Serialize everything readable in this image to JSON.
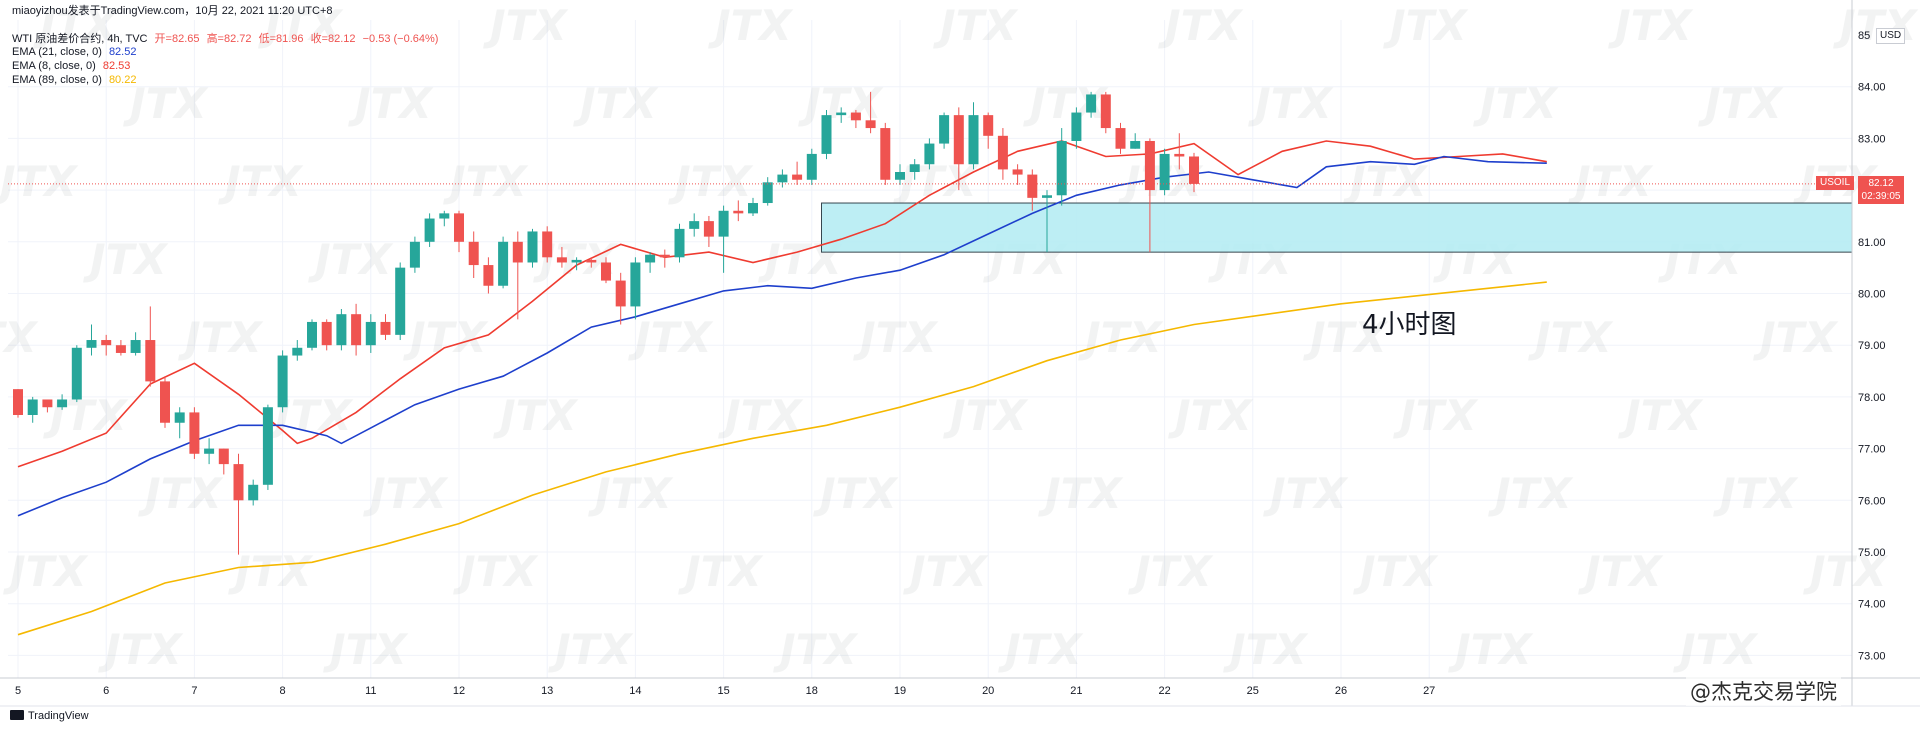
{
  "header": {
    "publisher_line": "miaoyizhou发表于TradingView.com，10月 22, 2021 11:20 UTC+8",
    "symbol_line": {
      "name": "WTI 原油差价合约, 4h, TVC",
      "open": "开=82.65",
      "high": "高=82.72",
      "low": "低=81.96",
      "close": "收=82.12",
      "change": "−0.53 (−0.64%)"
    },
    "indicators": [
      {
        "label": "EMA (21, close, 0)",
        "value": "82.52",
        "color": "#1e3fcc"
      },
      {
        "label": "EMA (8, close, 0)",
        "value": "82.53",
        "color": "#ef3b30"
      },
      {
        "label": "EMA (89, close, 0)",
        "value": "80.22",
        "color": "#f5b800"
      }
    ]
  },
  "price_badge": {
    "symbol": "USOIL",
    "price": "82.12",
    "countdown": "02:39:05"
  },
  "currency": "USD",
  "annotation": "4小时图",
  "footer": {
    "brand": "TradingView",
    "watermark": "@杰克交易学院"
  },
  "watermark_logo": "JTX",
  "colors": {
    "up": "#26a69a",
    "down": "#ef5350",
    "zone_fill": "#b2ebf2",
    "zone_stroke": "#37474f"
  },
  "chart_data": {
    "type": "candlestick",
    "ylim": [
      72.5,
      85.0
    ],
    "y_ticks": [
      "73.00",
      "74.00",
      "75.00",
      "76.00",
      "77.00",
      "78.00",
      "79.00",
      "80.00",
      "81.00",
      "82.00",
      "83.00",
      "84.00"
    ],
    "y_top_tick": "85",
    "x_ticks": [
      {
        "i": 0,
        "label": "5"
      },
      {
        "i": 6,
        "label": "6"
      },
      {
        "i": 12,
        "label": "7"
      },
      {
        "i": 18,
        "label": "8"
      },
      {
        "i": 24,
        "label": "11"
      },
      {
        "i": 30,
        "label": "12"
      },
      {
        "i": 36,
        "label": "13"
      },
      {
        "i": 42,
        "label": "14"
      },
      {
        "i": 48,
        "label": "15"
      },
      {
        "i": 54,
        "label": "18"
      },
      {
        "i": 60,
        "label": "19"
      },
      {
        "i": 66,
        "label": "20"
      },
      {
        "i": 72,
        "label": "21"
      },
      {
        "i": 78,
        "label": "22"
      },
      {
        "i": 84,
        "label": "25"
      },
      {
        "i": 90,
        "label": "26"
      },
      {
        "i": 96,
        "label": "27"
      }
    ],
    "candles": [
      [
        78.15,
        77.65,
        78.15,
        77.6
      ],
      [
        77.65,
        77.95,
        78.0,
        77.5
      ],
      [
        77.95,
        77.8,
        77.95,
        77.7
      ],
      [
        77.8,
        77.95,
        78.05,
        77.75
      ],
      [
        77.95,
        78.95,
        79.0,
        77.9
      ],
      [
        78.95,
        79.1,
        79.4,
        78.8
      ],
      [
        79.1,
        79.0,
        79.2,
        78.8
      ],
      [
        79.0,
        78.85,
        79.1,
        78.8
      ],
      [
        78.85,
        79.1,
        79.25,
        78.8
      ],
      [
        79.1,
        78.3,
        79.75,
        78.2
      ],
      [
        78.3,
        77.5,
        78.4,
        77.4
      ],
      [
        77.5,
        77.7,
        77.8,
        77.2
      ],
      [
        77.7,
        76.9,
        77.8,
        76.8
      ],
      [
        76.9,
        77.0,
        77.2,
        76.7
      ],
      [
        77.0,
        76.7,
        77.0,
        76.5
      ],
      [
        76.7,
        76.0,
        76.9,
        74.95
      ],
      [
        76.0,
        76.3,
        76.4,
        75.9
      ],
      [
        76.3,
        77.8,
        77.85,
        76.2
      ],
      [
        77.8,
        78.8,
        78.9,
        77.7
      ],
      [
        78.8,
        78.95,
        79.1,
        78.7
      ],
      [
        78.95,
        79.45,
        79.5,
        78.9
      ],
      [
        79.45,
        79.0,
        79.5,
        78.9
      ],
      [
        79.0,
        79.6,
        79.7,
        78.9
      ],
      [
        79.6,
        79.0,
        79.8,
        78.8
      ],
      [
        79.0,
        79.45,
        79.6,
        78.85
      ],
      [
        79.45,
        79.2,
        79.6,
        79.1
      ],
      [
        79.2,
        80.5,
        80.6,
        79.1
      ],
      [
        80.5,
        81.0,
        81.1,
        80.4
      ],
      [
        81.0,
        81.45,
        81.55,
        80.9
      ],
      [
        81.45,
        81.55,
        81.6,
        81.3
      ],
      [
        81.55,
        81.0,
        81.6,
        80.8
      ],
      [
        81.0,
        80.55,
        81.2,
        80.3
      ],
      [
        80.55,
        80.15,
        80.7,
        80.0
      ],
      [
        80.15,
        81.0,
        81.1,
        80.1
      ],
      [
        81.0,
        80.6,
        81.2,
        79.5
      ],
      [
        80.6,
        81.2,
        81.25,
        80.5
      ],
      [
        81.2,
        80.7,
        81.3,
        80.6
      ],
      [
        80.7,
        80.6,
        80.9,
        80.5
      ],
      [
        80.6,
        80.65,
        80.7,
        80.45
      ],
      [
        80.65,
        80.6,
        80.7,
        80.5
      ],
      [
        80.6,
        80.25,
        80.7,
        80.2
      ],
      [
        80.25,
        79.75,
        80.4,
        79.4
      ],
      [
        79.75,
        80.6,
        80.7,
        79.5
      ],
      [
        80.6,
        80.75,
        80.8,
        80.4
      ],
      [
        80.75,
        80.7,
        80.85,
        80.5
      ],
      [
        80.7,
        81.25,
        81.35,
        80.6
      ],
      [
        81.25,
        81.4,
        81.55,
        81.1
      ],
      [
        81.4,
        81.1,
        81.5,
        80.9
      ],
      [
        81.1,
        81.6,
        81.7,
        80.4
      ],
      [
        81.6,
        81.55,
        81.8,
        81.4
      ],
      [
        81.55,
        81.75,
        81.85,
        81.5
      ],
      [
        81.75,
        82.15,
        82.25,
        81.7
      ],
      [
        82.15,
        82.3,
        82.4,
        82.05
      ],
      [
        82.3,
        82.2,
        82.55,
        82.1
      ],
      [
        82.2,
        82.7,
        82.8,
        82.1
      ],
      [
        82.7,
        83.45,
        83.55,
        82.6
      ],
      [
        83.45,
        83.5,
        83.6,
        83.3
      ],
      [
        83.5,
        83.35,
        83.55,
        83.2
      ],
      [
        83.35,
        83.2,
        83.9,
        83.1
      ],
      [
        83.2,
        82.2,
        83.3,
        82.1
      ],
      [
        82.2,
        82.35,
        82.5,
        82.1
      ],
      [
        82.35,
        82.5,
        82.6,
        82.2
      ],
      [
        82.5,
        82.9,
        83.0,
        82.4
      ],
      [
        82.9,
        83.45,
        83.5,
        82.8
      ],
      [
        83.45,
        82.5,
        83.6,
        82.0
      ],
      [
        82.5,
        83.45,
        83.7,
        82.4
      ],
      [
        83.45,
        83.05,
        83.5,
        82.8
      ],
      [
        83.05,
        82.4,
        83.2,
        82.2
      ],
      [
        82.4,
        82.3,
        82.5,
        82.1
      ],
      [
        82.3,
        81.85,
        82.4,
        81.6
      ],
      [
        81.85,
        81.9,
        82.0,
        80.8
      ],
      [
        81.9,
        82.95,
        83.2,
        81.7
      ],
      [
        82.95,
        83.5,
        83.6,
        82.8
      ],
      [
        83.5,
        83.85,
        83.9,
        83.4
      ],
      [
        83.85,
        83.2,
        83.9,
        83.1
      ],
      [
        83.2,
        82.8,
        83.3,
        82.7
      ],
      [
        82.8,
        82.95,
        83.1,
        82.8
      ],
      [
        82.95,
        82.0,
        83.0,
        80.8
      ],
      [
        82.0,
        82.7,
        82.8,
        81.9
      ],
      [
        82.7,
        82.65,
        83.1,
        82.4
      ],
      [
        82.65,
        82.12,
        82.72,
        81.96
      ]
    ],
    "series": [
      {
        "name": "EMA (8, close, 0)",
        "color": "#ef3b30",
        "points": [
          [
            0,
            76.65
          ],
          [
            3,
            76.95
          ],
          [
            6,
            77.3
          ],
          [
            9,
            78.25
          ],
          [
            12,
            78.65
          ],
          [
            15,
            78.05
          ],
          [
            18,
            77.35
          ],
          [
            19,
            77.1
          ],
          [
            20,
            77.2
          ],
          [
            23,
            77.7
          ],
          [
            26,
            78.35
          ],
          [
            29,
            78.95
          ],
          [
            32,
            79.2
          ],
          [
            35,
            79.85
          ],
          [
            38,
            80.55
          ],
          [
            41,
            80.95
          ],
          [
            44,
            80.7
          ],
          [
            47,
            80.8
          ],
          [
            50,
            80.6
          ],
          [
            53,
            80.8
          ],
          [
            56,
            81.05
          ],
          [
            59,
            81.35
          ],
          [
            62,
            81.9
          ],
          [
            65,
            82.35
          ],
          [
            68,
            82.75
          ],
          [
            71,
            82.95
          ],
          [
            74,
            82.65
          ],
          [
            77,
            82.7
          ],
          [
            80,
            82.9
          ],
          [
            83,
            82.3
          ],
          [
            86,
            82.75
          ],
          [
            89,
            82.95
          ],
          [
            92,
            82.85
          ],
          [
            95,
            82.6
          ],
          [
            98,
            82.65
          ],
          [
            101,
            82.7
          ],
          [
            104,
            82.55
          ]
        ]
      },
      {
        "name": "EMA (21, close, 0)",
        "color": "#1e3fcc",
        "points": [
          [
            0,
            75.7
          ],
          [
            3,
            76.05
          ],
          [
            6,
            76.35
          ],
          [
            9,
            76.8
          ],
          [
            12,
            77.15
          ],
          [
            15,
            77.45
          ],
          [
            18,
            77.45
          ],
          [
            21,
            77.25
          ],
          [
            22,
            77.1
          ],
          [
            24,
            77.4
          ],
          [
            27,
            77.85
          ],
          [
            30,
            78.15
          ],
          [
            33,
            78.4
          ],
          [
            36,
            78.85
          ],
          [
            39,
            79.35
          ],
          [
            42,
            79.55
          ],
          [
            45,
            79.8
          ],
          [
            48,
            80.05
          ],
          [
            51,
            80.15
          ],
          [
            54,
            80.1
          ],
          [
            57,
            80.3
          ],
          [
            60,
            80.45
          ],
          [
            63,
            80.75
          ],
          [
            66,
            81.15
          ],
          [
            69,
            81.55
          ],
          [
            72,
            81.9
          ],
          [
            75,
            82.1
          ],
          [
            78,
            82.25
          ],
          [
            81,
            82.35
          ],
          [
            84,
            82.2
          ],
          [
            87,
            82.05
          ],
          [
            89,
            82.45
          ],
          [
            92,
            82.55
          ],
          [
            95,
            82.5
          ],
          [
            97,
            82.65
          ],
          [
            100,
            82.55
          ],
          [
            104,
            82.52
          ]
        ]
      },
      {
        "name": "EMA (89, close, 0)",
        "color": "#f5b800",
        "points": [
          [
            0,
            73.4
          ],
          [
            5,
            73.85
          ],
          [
            10,
            74.4
          ],
          [
            15,
            74.7
          ],
          [
            20,
            74.8
          ],
          [
            25,
            75.15
          ],
          [
            30,
            75.55
          ],
          [
            35,
            76.1
          ],
          [
            40,
            76.55
          ],
          [
            45,
            76.9
          ],
          [
            50,
            77.2
          ],
          [
            55,
            77.45
          ],
          [
            60,
            77.8
          ],
          [
            65,
            78.2
          ],
          [
            70,
            78.7
          ],
          [
            75,
            79.1
          ],
          [
            80,
            79.4
          ],
          [
            85,
            79.6
          ],
          [
            90,
            79.8
          ],
          [
            95,
            79.95
          ],
          [
            100,
            80.1
          ],
          [
            104,
            80.22
          ]
        ]
      }
    ],
    "zone": {
      "low": 80.8,
      "high": 81.75,
      "start_i": 55
    },
    "current_price": 82.12
  }
}
